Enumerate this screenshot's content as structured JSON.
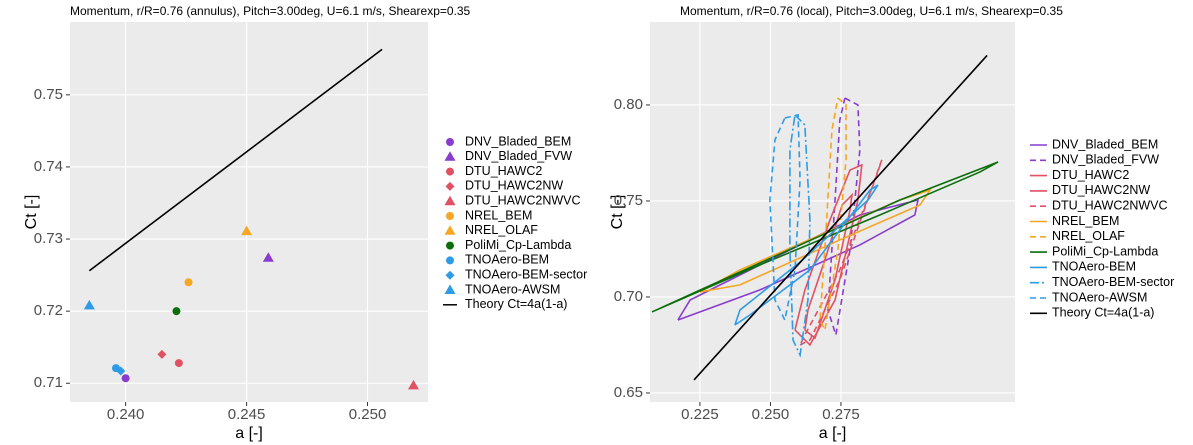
{
  "chart_data": [
    {
      "type": "scatter",
      "title": "Momentum, r/R=0.76 (annulus), Pitch=3.00deg, U=6.1 m/s, Shearexp=0.35",
      "x_label": "a [-]",
      "y_label": "Ct [-]",
      "xlim": [
        0.2377,
        0.2525
      ],
      "ylim": [
        0.7074,
        0.7601
      ],
      "xticks": [
        {
          "value": 0.24,
          "label": "0.240"
        },
        {
          "value": 0.245,
          "label": "0.245"
        },
        {
          "value": 0.25,
          "label": "0.250"
        }
      ],
      "yticks": [
        0.71,
        0.72,
        0.73,
        0.74,
        0.75
      ],
      "grid": true,
      "legend": "right",
      "series": [
        {
          "name": "DNV_Bladed_BEM",
          "color": "#8a3ccf",
          "marker": "circle",
          "x": [
            0.24
          ],
          "values": [
            0.7107
          ]
        },
        {
          "name": "DNV_Bladed_FVW",
          "color": "#8a3ccf",
          "marker": "triangle",
          "x": [
            0.2459
          ],
          "values": [
            0.7274
          ]
        },
        {
          "name": "DTU_HAWC2",
          "color": "#e05263",
          "marker": "circle",
          "x": [
            0.2422
          ],
          "values": [
            0.7128
          ]
        },
        {
          "name": "DTU_HAWC2NW",
          "color": "#e05263",
          "marker": "diamond",
          "x": [
            0.2415
          ],
          "values": [
            0.714
          ]
        },
        {
          "name": "DTU_HAWC2NWVC",
          "color": "#e05263",
          "marker": "triangle",
          "x": [
            0.2519
          ],
          "values": [
            0.7097
          ]
        },
        {
          "name": "NREL_BEM",
          "color": "#f5a623",
          "marker": "circle",
          "x": [
            0.2426
          ],
          "values": [
            0.724
          ]
        },
        {
          "name": "NREL_OLAF",
          "color": "#f5a623",
          "marker": "triangle",
          "x": [
            0.245
          ],
          "values": [
            0.7311
          ]
        },
        {
          "name": "PoliMi_Cp-Lambda",
          "color": "#0b6e0b",
          "marker": "circle",
          "x": [
            0.2421
          ],
          "values": [
            0.72
          ]
        },
        {
          "name": "TNOAero-BEM",
          "color": "#2e9be6",
          "marker": "circle",
          "x": [
            0.2396
          ],
          "values": [
            0.7121
          ]
        },
        {
          "name": "TNOAero-BEM-sector",
          "color": "#2e9be6",
          "marker": "diamond",
          "x": [
            0.2398
          ],
          "values": [
            0.7117
          ]
        },
        {
          "name": "TNOAero-AWSM",
          "color": "#2e9be6",
          "marker": "triangle",
          "x": [
            0.2385
          ],
          "values": [
            0.7208
          ]
        },
        {
          "name": "Theory Ct=4a(1-a)",
          "color": "#000000",
          "marker": "line",
          "x": [
            0.2385,
            0.2506
          ],
          "values": [
            0.7256,
            0.7563
          ]
        }
      ]
    },
    {
      "type": "line",
      "title": "Momentum, r/R=0.76 (local), Pitch=3.00deg, U=6.1 m/s, Shearexp=0.35",
      "x_label": "a [-]",
      "y_label": "Ct [-]",
      "xlim": [
        0.2073,
        0.3367
      ],
      "ylim": [
        0.6453,
        0.8432
      ],
      "xticks": [
        0.225,
        {
          "value": 0.25,
          "label": "0.250"
        },
        0.275
      ],
      "yticks": [
        0.65,
        {
          "value": 0.7,
          "label": "0.70"
        },
        0.75,
        {
          "value": 0.8,
          "label": "0.80"
        }
      ],
      "grid": true,
      "legend": "right",
      "series": [
        {
          "name": "DNV_Bladed_BEM",
          "color": "#8a3ccf",
          "dash": "solid",
          "x": [
            0.2172,
            0.2215,
            0.2463,
            0.2817,
            0.3023,
            0.3012,
            0.2817,
            0.2463,
            0.2172
          ],
          "values": [
            0.688,
            0.6984,
            0.7167,
            0.7427,
            0.7505,
            0.7427,
            0.7271,
            0.7037,
            0.688
          ]
        },
        {
          "name": "DNV_Bladed_FVW",
          "color": "#8a3ccf",
          "dash": "dashed",
          "x": [
            0.2764,
            0.281,
            0.2817,
            0.2782,
            0.2732,
            0.2704,
            0.2729,
            0.2746,
            0.2764
          ],
          "values": [
            0.8036,
            0.8,
            0.7766,
            0.7245,
            0.6802,
            0.6932,
            0.7505,
            0.7922,
            0.8036
          ]
        },
        {
          "name": "DTU_HAWC2",
          "color": "#e05263",
          "dash": "solid",
          "x": [
            0.2587,
            0.264,
            0.2729,
            0.281,
            0.2824,
            0.2782,
            0.2711,
            0.2622,
            0.2587
          ],
          "values": [
            0.6828,
            0.675,
            0.6984,
            0.7505,
            0.7688,
            0.7661,
            0.7401,
            0.7036,
            0.6828
          ]
        },
        {
          "name": "DTU_HAWC2NW",
          "color": "#e05263",
          "dash": "solid",
          "x": [
            0.2622,
            0.2658,
            0.2729,
            0.2782,
            0.2789,
            0.2754,
            0.2693,
            0.2633,
            0.2622
          ],
          "values": [
            0.6828,
            0.6786,
            0.7089,
            0.7453,
            0.7531,
            0.7479,
            0.7193,
            0.6932,
            0.6828
          ]
        },
        {
          "name": "DTU_HAWC2NWVC",
          "color": "#e05263",
          "dash": "dashed",
          "x": [
            0.2605,
            0.264,
            0.2746,
            0.2888,
            0.2895,
            0.2871,
            0.2746,
            0.2622,
            0.2605
          ],
          "values": [
            0.675,
            0.6776,
            0.7089,
            0.7688,
            0.7714,
            0.7609,
            0.7141,
            0.6802,
            0.675
          ]
        },
        {
          "name": "NREL_BEM",
          "color": "#f5a623",
          "dash": "solid",
          "x": [
            0.225,
            0.2392,
            0.2676,
            0.2959,
            0.3066,
            0.303,
            0.2746,
            0.2392,
            0.225
          ],
          "values": [
            0.7026,
            0.7141,
            0.7323,
            0.7505,
            0.7557,
            0.7479,
            0.7297,
            0.7063,
            0.7026
          ]
        },
        {
          "name": "NREL_OLAF",
          "color": "#f5a623",
          "dash": "dashed",
          "x": [
            0.2739,
            0.2768,
            0.2768,
            0.2739,
            0.2693,
            0.2676,
            0.2697,
            0.2718,
            0.2739
          ],
          "values": [
            0.8036,
            0.8,
            0.7714,
            0.7245,
            0.6828,
            0.688,
            0.7349,
            0.787,
            0.8036
          ]
        },
        {
          "name": "PoliMi_Cp-Lambda",
          "color": "#0b6e0b",
          "dash": "solid",
          "x": [
            0.208,
            0.225,
            0.2605,
            0.2959,
            0.3307,
            0.3243,
            0.2888,
            0.2463,
            0.208
          ],
          "values": [
            0.6922,
            0.7036,
            0.7271,
            0.7505,
            0.7703,
            0.7651,
            0.7427,
            0.7167,
            0.6922
          ]
        },
        {
          "name": "TNOAero-BEM",
          "color": "#2e9be6",
          "dash": "solid",
          "x": [
            0.2374,
            0.2427,
            0.264,
            0.2853,
            0.2881,
            0.2846,
            0.2605,
            0.2392,
            0.2374
          ],
          "values": [
            0.6854,
            0.6906,
            0.7141,
            0.7557,
            0.7583,
            0.7505,
            0.7182,
            0.6932,
            0.6854
          ]
        },
        {
          "name": "TNOAero-BEM-sector",
          "color": "#2e9be6",
          "dash": "dotdash",
          "x": [
            0.2587,
            0.2622,
            0.264,
            0.2633,
            0.2605,
            0.258,
            0.2569,
            0.2569,
            0.2587
          ],
          "values": [
            0.7948,
            0.7896,
            0.7401,
            0.6984,
            0.6698,
            0.6776,
            0.7245,
            0.7766,
            0.7948
          ]
        },
        {
          "name": "TNOAero-AWSM",
          "color": "#2e9be6",
          "dash": "dashed",
          "x": [
            0.2551,
            0.2598,
            0.2605,
            0.2587,
            0.2551,
            0.2516,
            0.2498,
            0.2516,
            0.2551
          ],
          "values": [
            0.7932,
            0.7948,
            0.7609,
            0.7141,
            0.688,
            0.6984,
            0.7505,
            0.7818,
            0.7932
          ]
        },
        {
          "name": "Theory Ct=4a(1-a)",
          "color": "#000000",
          "dash": "solid",
          "x": [
            0.2229,
            0.3268
          ],
          "values": [
            0.6568,
            0.8258
          ]
        }
      ]
    }
  ]
}
